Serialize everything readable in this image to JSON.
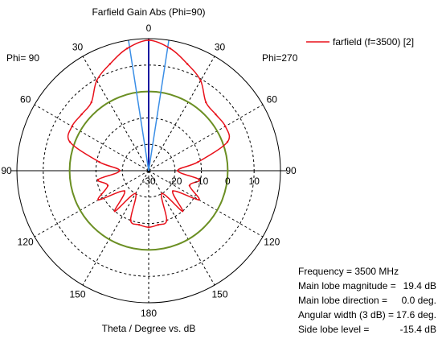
{
  "chart_data": {
    "type": "polar-line",
    "title": "Farfield Gain Abs (Phi=90)",
    "xlabel": "Theta / Degree vs. dB",
    "left_label": "Phi= 90",
    "right_label": "Phi=270",
    "angle_ticks": [
      "0",
      "30",
      "60",
      "90",
      "120",
      "150",
      "180",
      "150",
      "120",
      "90",
      "60",
      "30"
    ],
    "radial_ticks": [
      "-30",
      "-20",
      "-10",
      "0",
      "10"
    ],
    "r_range": [
      -30,
      20
    ],
    "series": [
      {
        "name": "farfield (f=3500) [2]",
        "color": "#e8101a",
        "angle_deg": [
          0,
          10,
          20,
          30,
          40,
          50,
          60,
          70,
          80,
          90,
          100,
          110,
          120,
          130,
          140,
          150,
          160,
          170,
          180,
          190,
          200,
          210,
          220,
          230,
          240,
          250,
          260,
          270,
          280,
          290,
          300,
          310,
          320,
          330,
          340,
          350
        ],
        "gain_dbi": [
          19.4,
          17,
          13,
          9.4,
          3.8,
          3.2,
          3.6,
          1.8,
          -11,
          -19,
          -10.5,
          -13.5,
          -8,
          -18,
          -10,
          -20,
          -10,
          -9.2,
          -8.6,
          -9.2,
          -10,
          -20,
          -10,
          -18,
          -8,
          -13.5,
          -10.5,
          -19,
          -11,
          1.8,
          3.6,
          3.2,
          3.8,
          9.4,
          13,
          17
        ]
      }
    ],
    "reference_circle": {
      "gain_dbi": 0,
      "color": "#6b8f23"
    },
    "main_lobe": {
      "direction_deg": 0,
      "color": "#1a1aa0"
    },
    "beamwidth_lines": {
      "angles_deg": [
        -8.8,
        8.8
      ],
      "color": "#3a8ee6"
    },
    "grid": true,
    "legend_position": "top-right"
  },
  "info": [
    {
      "label": "Frequency = 3500 MHz",
      "value": ""
    },
    {
      "label": "Main lobe magnitude =",
      "value": "19.4 dB"
    },
    {
      "label": "Main lobe direction =",
      "value": "0.0 deg."
    },
    {
      "label": "Angular width (3 dB) =",
      "value": "17.6 deg."
    },
    {
      "label": "Side lobe level =",
      "value": "-15.4 dB"
    }
  ]
}
